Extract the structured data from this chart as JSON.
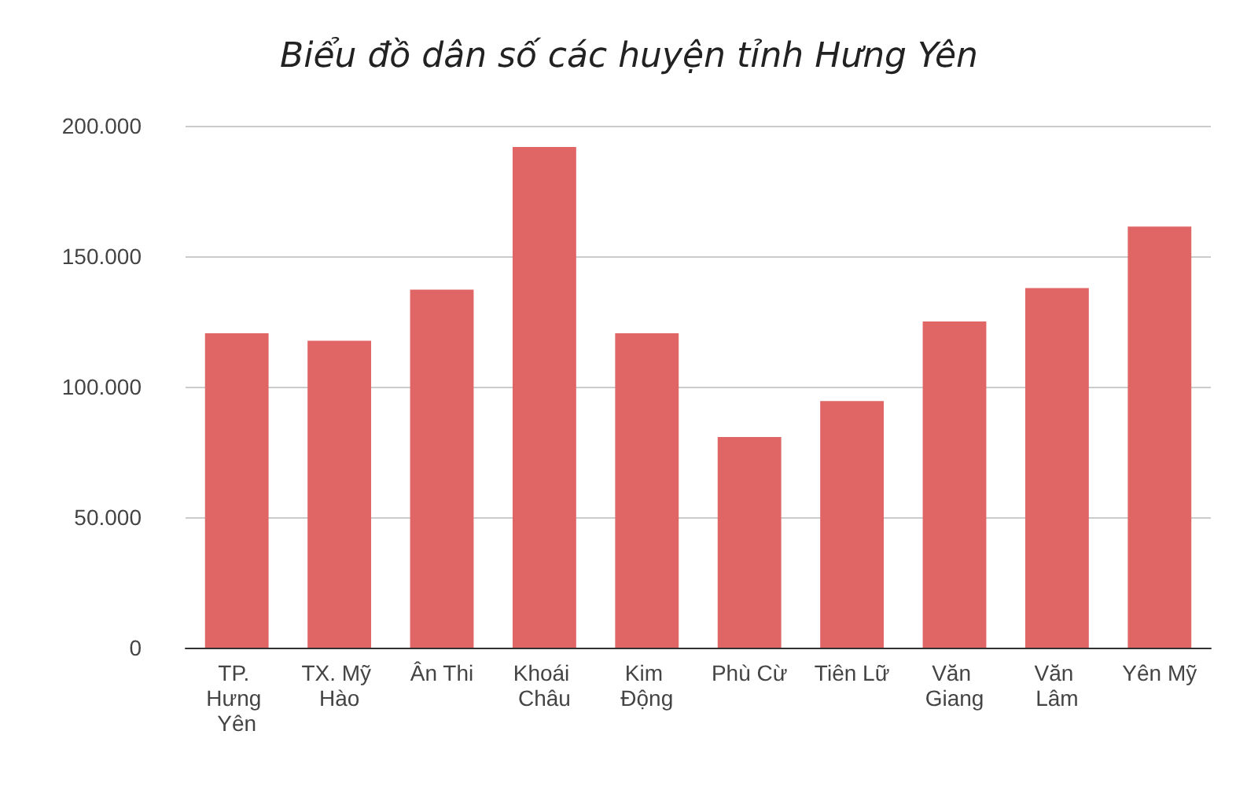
{
  "chart_data": {
    "type": "bar",
    "title": "Biểu đồ dân số các huyện tỉnh Hưng Yên",
    "categories": [
      "TP. Hưng Yên",
      "TX. Mỹ Hào",
      "Ân Thi",
      "Khoái Châu",
      "Kim Động",
      "Phù Cừ",
      "Tiên Lữ",
      "Văn Giang",
      "Văn Lâm",
      "Yên Mỹ"
    ],
    "values": [
      120500,
      117600,
      137200,
      191900,
      120500,
      80700,
      94500,
      125000,
      137800,
      161400
    ],
    "color": "#e06666",
    "ylim": [
      0,
      200000
    ],
    "yticks": [
      {
        "value": 0,
        "label": "0"
      },
      {
        "value": 50000,
        "label": "50.000"
      },
      {
        "value": 100000,
        "label": "100.000"
      },
      {
        "value": 150000,
        "label": "150.000"
      },
      {
        "value": 200000,
        "label": "200.000"
      }
    ],
    "grid": "y"
  }
}
